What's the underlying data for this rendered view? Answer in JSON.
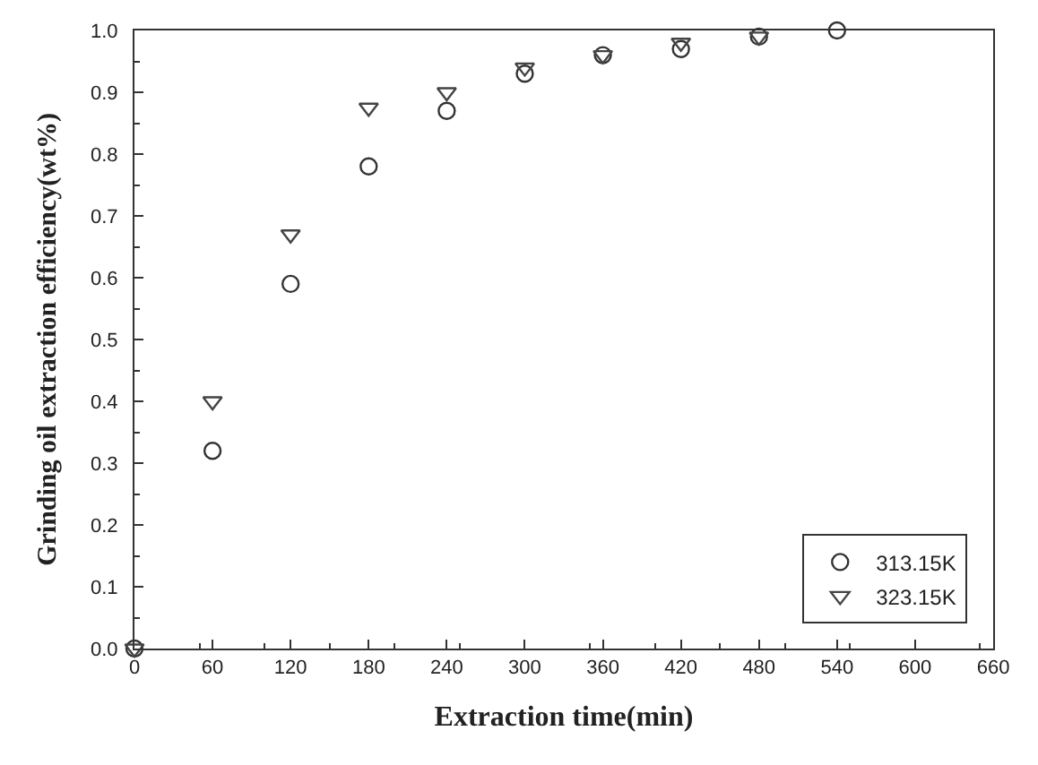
{
  "chart_data": {
    "type": "scatter",
    "xlabel": "Extraction time(min)",
    "ylabel": "Grinding oil extraction efficiency(wt%)",
    "x": [
      0,
      60,
      120,
      180,
      240,
      300,
      360,
      420,
      480,
      540
    ],
    "series": [
      {
        "name": "313.15K",
        "color": "#333333",
        "marker": "circle",
        "values": [
          0,
          0.32,
          0.59,
          0.78,
          0.87,
          0.93,
          0.96,
          0.97,
          0.99,
          1.0
        ]
      },
      {
        "name": "323.15K",
        "color": "#444444",
        "marker": "triangle",
        "values": [
          0,
          0.4,
          0.67,
          0.875,
          0.9,
          0.94,
          0.96,
          0.98,
          0.99,
          null
        ]
      }
    ],
    "xlim": [
      0,
      660
    ],
    "xticks": [
      0,
      60,
      120,
      180,
      240,
      300,
      360,
      420,
      480,
      540,
      600,
      660
    ],
    "ylim": [
      0,
      1.0
    ],
    "yticks": [
      {
        "value": 0,
        "label": "0.0"
      },
      0.1,
      0.2,
      0.3,
      0.4,
      0.5,
      0.6,
      0.7,
      0.8,
      0.9,
      {
        "value": 1.0,
        "label": "1.0"
      }
    ],
    "legend": "bottom right"
  }
}
